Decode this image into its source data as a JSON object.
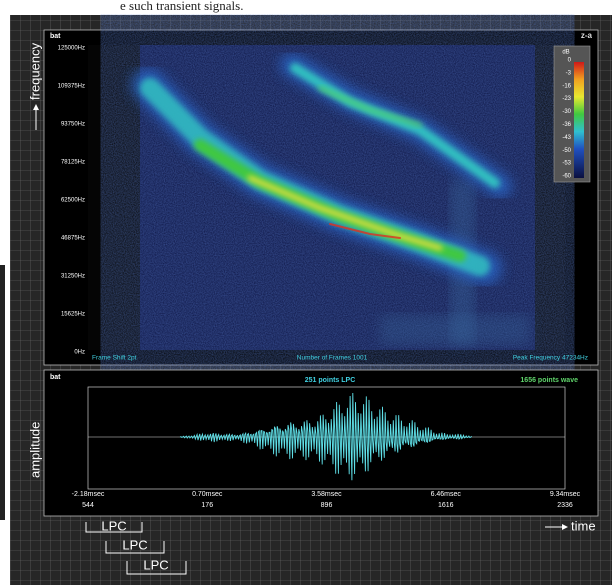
{
  "top_text": "e such transient signals.",
  "spectrogram": {
    "title": "bat",
    "logo": "z-a",
    "y_axis_label": "frequency",
    "yticks": [
      "125000Hz",
      "109375Hz",
      "93750Hz",
      "78125Hz",
      "62500Hz",
      "46875Hz",
      "31250Hz",
      "15625Hz",
      "0Hz"
    ],
    "colorbar": {
      "unit": "dB",
      "labels": [
        "0",
        "-3",
        "-16",
        "-23",
        "-30",
        "-36",
        "-43",
        "-50",
        "-53",
        "-60"
      ]
    },
    "footer": [
      "Frame Shift 2pt",
      "Number of Frames 1001",
      "Peak Frequency 47234Hz"
    ]
  },
  "waveform": {
    "title": "bat",
    "lpc_label": "251 points LPC",
    "wave_label": "1656 points wave",
    "y_axis_label": "amplitude",
    "time_ticks": [
      "-2.18msec",
      "0.70msec",
      "3.58msec",
      "6.46msec",
      "9.34msec"
    ],
    "sample_ticks": [
      "544",
      "176",
      "896",
      "1616",
      "2336"
    ]
  },
  "time_label": "time",
  "lpc_frames": [
    "LPC",
    "LPC",
    "LPC"
  ]
}
